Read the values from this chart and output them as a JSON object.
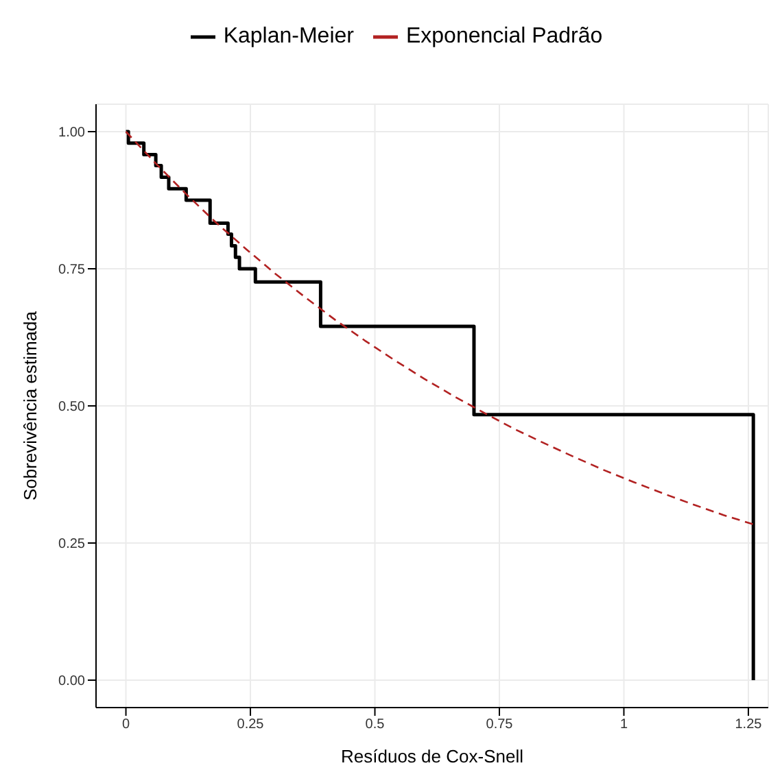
{
  "chart_data": {
    "type": "line",
    "xlabel": "Resíduos de Cox-Snell",
    "ylabel": "Sobrevivência estimada",
    "series": [
      {
        "name": "Kaplan-Meier",
        "type": "step",
        "color": "#000000",
        "line_style": "solid",
        "x": [
          0,
          0.005,
          0.036,
          0.06,
          0.071,
          0.086,
          0.121,
          0.169,
          0.205,
          0.212,
          0.22,
          0.228,
          0.26,
          0.391,
          0.699,
          1.26
        ],
        "values": [
          1.0,
          0.979,
          0.958,
          0.938,
          0.917,
          0.896,
          0.875,
          0.833,
          0.813,
          0.792,
          0.771,
          0.75,
          0.726,
          0.645,
          0.484,
          0
        ]
      },
      {
        "name": "Exponencial Padrão",
        "color": "#b22222",
        "line_style": "dashed",
        "x": [
          0,
          0.06,
          0.12,
          0.18,
          0.24,
          0.3,
          0.36,
          0.42,
          0.48,
          0.54,
          0.6,
          0.66,
          0.72,
          0.78,
          0.84,
          0.9,
          0.96,
          1.02,
          1.08,
          1.14,
          1.2,
          1.26
        ],
        "values": [
          1.0,
          0.942,
          0.887,
          0.835,
          0.787,
          0.741,
          0.698,
          0.657,
          0.619,
          0.583,
          0.549,
          0.517,
          0.487,
          0.458,
          0.432,
          0.407,
          0.383,
          0.361,
          0.34,
          0.32,
          0.301,
          0.284
        ]
      }
    ],
    "xlim": [
      -0.06,
      1.29
    ],
    "xticks": [
      0,
      0.25,
      0.5,
      0.75,
      1,
      1.25
    ],
    "ylim": [
      -0.05,
      1.05
    ],
    "yticks": [
      {
        "value": 0,
        "label": "0.00"
      },
      {
        "value": 0.25,
        "label": "0.25"
      },
      {
        "value": 0.5,
        "label": "0.50"
      },
      {
        "value": 0.75,
        "label": "0.75"
      },
      {
        "value": 1,
        "label": "1.00"
      }
    ],
    "grid": true,
    "legend": "top",
    "marker": "none"
  }
}
